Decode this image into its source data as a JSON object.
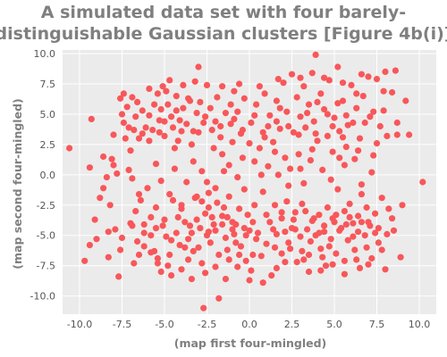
{
  "chart_data": {
    "type": "scatter",
    "title": "A simulated data set with four barely-distinguishable Gaussian clusters [Figure 4b(i)]",
    "title_lines": [
      "A simulated data set with four barely-",
      "distinguishable Gaussian clusters [Figure 4b(i)]"
    ],
    "xlabel": "(map first four-mingled)",
    "ylabel": "(map second four-mingled)",
    "xlim": [
      -11,
      11
    ],
    "ylim": [
      -11.5,
      10.3
    ],
    "xticks": [
      -10,
      -7.5,
      -5,
      -2.5,
      0,
      2.5,
      5,
      7.5,
      10
    ],
    "xtick_labels": [
      "-10.0",
      "-7.5",
      "-5.0",
      "-2.5",
      "0.0",
      "2.5",
      "5.0",
      "7.5",
      "10.0"
    ],
    "yticks": [
      -10,
      -7.5,
      -5,
      -2.5,
      0,
      2.5,
      5,
      7.5,
      10
    ],
    "ytick_labels": [
      "-10.0",
      "-7.5",
      "-5.0",
      "-2.5",
      "0.0",
      "2.5",
      "5.0",
      "7.5",
      "10.0"
    ],
    "grid": true,
    "colors": {
      "background": "#ebebeb",
      "grid": "#ffffff",
      "point": "#f8575a"
    },
    "points": [
      [
        -10.6,
        2.2
      ],
      [
        -9.7,
        -7.1
      ],
      [
        -9.4,
        0.6
      ],
      [
        -9.3,
        4.6
      ],
      [
        -9.0,
        -5.3
      ],
      [
        -8.6,
        -1.1
      ],
      [
        -8.3,
        -4.7
      ],
      [
        -8.1,
        1.3
      ],
      [
        -8.0,
        0.8
      ],
      [
        -7.9,
        -4.5
      ],
      [
        -7.7,
        -8.4
      ],
      [
        -7.6,
        -6.2
      ],
      [
        -7.4,
        4.3
      ],
      [
        -7.4,
        6.7
      ],
      [
        -7.3,
        3.0
      ],
      [
        -7.2,
        5.6
      ],
      [
        -7.1,
        0.4
      ],
      [
        -6.9,
        6.4
      ],
      [
        -6.9,
        -0.3
      ],
      [
        -6.8,
        3.7
      ],
      [
        -6.7,
        -3.0
      ],
      [
        -6.6,
        -5.5
      ],
      [
        -6.5,
        3.0
      ],
      [
        -6.4,
        -2.1
      ],
      [
        -6.3,
        5.3
      ],
      [
        -6.2,
        -4.1
      ],
      [
        -6.2,
        -4.8
      ],
      [
        -6.0,
        -1.1
      ],
      [
        -5.9,
        4.9
      ],
      [
        -5.8,
        -3.5
      ],
      [
        -5.8,
        -6.4
      ],
      [
        -5.7,
        3.7
      ],
      [
        -5.6,
        -6.3
      ],
      [
        -5.5,
        -4.4
      ],
      [
        -5.5,
        0.9
      ],
      [
        -5.4,
        6.7
      ],
      [
        -5.4,
        -7.3
      ],
      [
        -5.3,
        3.5
      ],
      [
        -5.2,
        5.4
      ],
      [
        -5.1,
        7.3
      ],
      [
        -5.0,
        -3.7
      ],
      [
        -5.0,
        4.4
      ],
      [
        -4.9,
        -5.1
      ],
      [
        -4.8,
        -7.5
      ],
      [
        -4.8,
        5.8
      ],
      [
        -4.7,
        -6.6
      ],
      [
        -4.6,
        4.8
      ],
      [
        -4.6,
        -8.3
      ],
      [
        -4.5,
        3.9
      ],
      [
        -4.5,
        -2.1
      ],
      [
        -4.4,
        0.5
      ],
      [
        -4.3,
        -4.8
      ],
      [
        -4.3,
        6.5
      ],
      [
        -4.2,
        2.8
      ],
      [
        -4.1,
        -5.8
      ],
      [
        -4.0,
        3.6
      ],
      [
        -4.0,
        -2.8
      ],
      [
        -3.9,
        5.5
      ],
      [
        -3.8,
        -6.0
      ],
      [
        -3.8,
        -3.9
      ],
      [
        -3.7,
        4.2
      ],
      [
        -3.7,
        -0.6
      ],
      [
        -3.6,
        -7.0
      ],
      [
        -3.5,
        -4.2
      ],
      [
        -3.5,
        6.1
      ],
      [
        -3.4,
        -4.8
      ],
      [
        -3.3,
        1.1
      ],
      [
        -3.3,
        3.6
      ],
      [
        -3.2,
        -1.9
      ],
      [
        -3.1,
        -3.7
      ],
      [
        -3.1,
        5.1
      ],
      [
        -3.0,
        -6.0
      ],
      [
        -3.0,
        8.9
      ],
      [
        -2.9,
        -4.4
      ],
      [
        -2.8,
        -7.3
      ],
      [
        -2.8,
        0.3
      ],
      [
        -2.7,
        -11.0
      ],
      [
        -2.7,
        4.3
      ],
      [
        -2.6,
        -3.2
      ],
      [
        -2.5,
        -5.0
      ],
      [
        -2.5,
        7.4
      ],
      [
        -2.4,
        -1.5
      ],
      [
        -2.4,
        -4.7
      ],
      [
        -2.3,
        5.5
      ],
      [
        -2.2,
        -3.5
      ],
      [
        -2.2,
        3.7
      ],
      [
        -2.1,
        2.2
      ],
      [
        -2.0,
        -4.6
      ],
      [
        -2.0,
        -1.1
      ],
      [
        -1.9,
        6.4
      ],
      [
        -1.8,
        -10.2
      ],
      [
        -1.8,
        -6.6
      ],
      [
        -1.7,
        4.0
      ],
      [
        -1.6,
        -4.1
      ],
      [
        -1.6,
        1.7
      ],
      [
        -1.5,
        -2.7
      ],
      [
        -1.4,
        5.1
      ],
      [
        -1.4,
        -5.2
      ],
      [
        -1.3,
        -3.5
      ],
      [
        -1.2,
        0.8
      ],
      [
        -1.2,
        -7.0
      ],
      [
        -1.1,
        4.2
      ],
      [
        -1.0,
        -3.9
      ],
      [
        -1.0,
        2.7
      ],
      [
        -0.9,
        -4.9
      ],
      [
        -0.9,
        6.9
      ],
      [
        -0.8,
        -5.6
      ],
      [
        -0.7,
        -0.2
      ],
      [
        -0.7,
        5.2
      ],
      [
        -0.6,
        -2.8
      ],
      [
        -0.5,
        3.4
      ],
      [
        -0.5,
        -5.9
      ],
      [
        -0.4,
        1.4
      ],
      [
        -0.3,
        -4.4
      ],
      [
        -0.3,
        6.3
      ],
      [
        -0.2,
        -7.1
      ],
      [
        -0.1,
        -3.3
      ],
      [
        0.0,
        2.6
      ],
      [
        0.0,
        -8.7
      ],
      [
        0.1,
        4.3
      ],
      [
        0.2,
        -6.6
      ],
      [
        0.3,
        1.1
      ],
      [
        0.3,
        -2.5
      ],
      [
        0.4,
        5.8
      ],
      [
        0.5,
        -4.8
      ],
      [
        0.6,
        2.2
      ],
      [
        0.7,
        -6.7
      ],
      [
        0.8,
        3.5
      ],
      [
        0.8,
        -1.4
      ],
      [
        0.9,
        6.7
      ],
      [
        1.0,
        -5.7
      ],
      [
        1.1,
        0.7
      ],
      [
        1.2,
        4.9
      ],
      [
        1.2,
        -3.9
      ],
      [
        1.3,
        -8.3
      ],
      [
        1.4,
        2.7
      ],
      [
        1.5,
        -2.5
      ],
      [
        1.6,
        6.1
      ],
      [
        1.6,
        -4.9
      ],
      [
        1.7,
        0.0
      ],
      [
        1.8,
        3.8
      ],
      [
        1.9,
        -6.5
      ],
      [
        1.9,
        -3.1
      ],
      [
        2.0,
        7.6
      ],
      [
        2.1,
        1.4
      ],
      [
        2.2,
        -2.2
      ],
      [
        2.2,
        5.2
      ],
      [
        2.3,
        -5.6
      ],
      [
        2.4,
        0.5
      ],
      [
        2.5,
        -4.4
      ],
      [
        2.5,
        8.3
      ],
      [
        2.6,
        3.5
      ],
      [
        2.7,
        -3.1
      ],
      [
        2.8,
        6.4
      ],
      [
        2.8,
        -7.2
      ],
      [
        2.9,
        1.7
      ],
      [
        3.0,
        -5.1
      ],
      [
        3.0,
        4.8
      ],
      [
        3.1,
        -2.4
      ],
      [
        3.2,
        7.3
      ],
      [
        3.2,
        -0.7
      ],
      [
        3.3,
        3.9
      ],
      [
        3.4,
        -4.5
      ],
      [
        3.5,
        5.8
      ],
      [
        3.5,
        -6.6
      ],
      [
        3.6,
        1.2
      ],
      [
        3.7,
        -3.8
      ],
      [
        3.7,
        8.4
      ],
      [
        3.8,
        4.4
      ],
      [
        3.9,
        -5.0
      ],
      [
        3.9,
        9.9
      ],
      [
        4.0,
        2.8
      ],
      [
        4.1,
        -3.3
      ],
      [
        4.2,
        6.7
      ],
      [
        4.2,
        -6.1
      ],
      [
        4.3,
        0.4
      ],
      [
        4.4,
        -4.2
      ],
      [
        4.4,
        5.4
      ],
      [
        4.5,
        -7.5
      ],
      [
        4.6,
        3.2
      ],
      [
        4.6,
        -2.7
      ],
      [
        4.7,
        7.8
      ],
      [
        4.8,
        -5.3
      ],
      [
        4.9,
        1.9
      ],
      [
        4.9,
        -3.6
      ],
      [
        5.0,
        4.7
      ],
      [
        5.1,
        -6.5
      ],
      [
        5.2,
        8.9
      ],
      [
        5.2,
        -1.2
      ],
      [
        5.3,
        3.6
      ],
      [
        5.4,
        -4.4
      ],
      [
        5.5,
        6.1
      ],
      [
        5.6,
        -7.1
      ],
      [
        5.6,
        -3.0
      ],
      [
        5.7,
        2.3
      ],
      [
        5.8,
        -5.4
      ],
      [
        5.8,
        4.1
      ],
      [
        5.9,
        -2.4
      ],
      [
        6.0,
        7.4
      ],
      [
        6.1,
        -4.0
      ],
      [
        6.2,
        1.3
      ],
      [
        6.2,
        -6.2
      ],
      [
        6.3,
        5.5
      ],
      [
        6.4,
        -3.4
      ],
      [
        6.5,
        3.0
      ],
      [
        6.5,
        -7.7
      ],
      [
        6.6,
        -1.6
      ],
      [
        6.7,
        6.5
      ],
      [
        6.8,
        -5.0
      ],
      [
        6.8,
        4.3
      ],
      [
        6.9,
        -2.7
      ],
      [
        7.0,
        8.1
      ],
      [
        7.1,
        -4.2
      ],
      [
        7.2,
        0.2
      ],
      [
        7.2,
        -6.9
      ],
      [
        7.3,
        5.2
      ],
      [
        7.4,
        -3.2
      ],
      [
        7.5,
        2.6
      ],
      [
        7.6,
        -5.6
      ],
      [
        7.7,
        4.0
      ],
      [
        7.8,
        -1.9
      ],
      [
        7.9,
        6.9
      ],
      [
        8.0,
        8.5
      ],
      [
        8.1,
        3.2
      ],
      [
        8.2,
        -2.8
      ],
      [
        8.4,
        -3.6
      ],
      [
        8.6,
        8.6
      ],
      [
        8.7,
        3.3
      ],
      [
        8.9,
        -6.8
      ],
      [
        9.2,
        6.1
      ],
      [
        9.4,
        3.3
      ],
      [
        10.2,
        -0.6
      ],
      [
        -7.0,
        2.0
      ],
      [
        -6.1,
        3.9
      ],
      [
        -5.6,
        5.8
      ],
      [
        -4.9,
        6.9
      ],
      [
        -4.4,
        2.2
      ],
      [
        -3.9,
        7.4
      ],
      [
        -3.4,
        2.5
      ],
      [
        -2.9,
        6.0
      ],
      [
        -2.3,
        -5.6
      ],
      [
        -1.9,
        -2.3
      ],
      [
        -1.3,
        -6.2
      ],
      [
        -0.8,
        -4.1
      ],
      [
        -0.2,
        -5.0
      ],
      [
        0.4,
        -5.3
      ],
      [
        1.0,
        -3.3
      ],
      [
        1.5,
        -6.0
      ],
      [
        2.1,
        -4.7
      ],
      [
        2.6,
        -3.7
      ],
      [
        3.1,
        -6.3
      ],
      [
        3.6,
        -5.5
      ],
      [
        4.1,
        -4.8
      ],
      [
        4.7,
        -5.9
      ],
      [
        5.3,
        -4.6
      ],
      [
        5.9,
        -3.5
      ],
      [
        6.4,
        -4.7
      ],
      [
        7.0,
        -3.9
      ],
      [
        7.6,
        -4.4
      ],
      [
        3.4,
        5.1
      ],
      [
        4.0,
        6.0
      ],
      [
        4.6,
        5.0
      ],
      [
        5.2,
        5.9
      ],
      [
        5.7,
        4.9
      ],
      [
        6.3,
        6.7
      ],
      [
        2.9,
        3.3
      ],
      [
        1.8,
        5.5
      ],
      [
        1.1,
        4.0
      ],
      [
        0.3,
        4.9
      ],
      [
        -0.4,
        3.7
      ],
      [
        -1.1,
        5.8
      ],
      [
        -1.7,
        3.1
      ],
      [
        -2.6,
        4.8
      ],
      [
        -3.6,
        6.3
      ],
      [
        -4.3,
        5.3
      ],
      [
        -5.3,
        4.5
      ],
      [
        -5.9,
        2.8
      ],
      [
        -6.7,
        4.8
      ],
      [
        -7.5,
        5.0
      ],
      [
        -8.2,
        -2.5
      ],
      [
        -7.0,
        -4.0
      ],
      [
        -6.2,
        -5.9
      ],
      [
        -5.1,
        -4.2
      ],
      [
        -4.2,
        -3.5
      ],
      [
        -3.3,
        -6.3
      ],
      [
        -2.4,
        -2.7
      ],
      [
        -1.6,
        -3.4
      ],
      [
        -0.7,
        -7.6
      ],
      [
        0.2,
        -3.9
      ],
      [
        1.4,
        -4.5
      ],
      [
        2.4,
        -6.1
      ],
      [
        3.3,
        -3.0
      ],
      [
        4.3,
        -6.8
      ],
      [
        5.0,
        -3.9
      ],
      [
        6.1,
        -5.1
      ],
      [
        6.9,
        -6.0
      ],
      [
        8.1,
        -4.9
      ],
      [
        0.7,
        0.0
      ],
      [
        -0.3,
        -1.2
      ],
      [
        1.5,
        1.9
      ],
      [
        2.3,
        -0.9
      ],
      [
        3.0,
        0.5
      ],
      [
        -1.5,
        0.3
      ],
      [
        -2.5,
        -0.6
      ],
      [
        -3.1,
        -1.8
      ],
      [
        -4.7,
        -1.6
      ],
      [
        -5.5,
        -2.7
      ],
      [
        -6.5,
        -1.6
      ],
      [
        4.8,
        -0.4
      ],
      [
        5.6,
        0.8
      ],
      [
        6.6,
        -0.8
      ],
      [
        -6.9,
        -4.2
      ],
      [
        -5.8,
        -5.0
      ],
      [
        -4.6,
        -5.4
      ],
      [
        -3.6,
        -5.3
      ],
      [
        -2.1,
        -4.1
      ],
      [
        -1.0,
        -4.5
      ],
      [
        0.0,
        -4.6
      ],
      [
        1.9,
        -3.6
      ],
      [
        2.7,
        -4.5
      ],
      [
        3.8,
        -3.6
      ],
      [
        4.4,
        -4.7
      ],
      [
        5.1,
        -3.3
      ],
      [
        5.7,
        -4.1
      ],
      [
        6.6,
        -3.9
      ],
      [
        7.4,
        -4.8
      ],
      [
        0.9,
        3.1
      ],
      [
        1.6,
        4.4
      ],
      [
        2.3,
        4.0
      ],
      [
        -0.9,
        4.6
      ],
      [
        -2.0,
        4.4
      ],
      [
        -3.0,
        3.5
      ],
      [
        -4.1,
        4.5
      ],
      [
        -5.0,
        3.2
      ],
      [
        -6.3,
        3.4
      ],
      [
        -7.1,
        3.9
      ],
      [
        3.9,
        3.4
      ],
      [
        4.9,
        4.0
      ],
      [
        5.5,
        3.1
      ],
      [
        6.1,
        4.3
      ],
      [
        7.1,
        4.8
      ],
      [
        7.9,
        5.3
      ],
      [
        -1.2,
        -1.8
      ],
      [
        -2.8,
        -2.2
      ],
      [
        -4.0,
        -2.5
      ],
      [
        -5.2,
        -0.5
      ],
      [
        3.7,
        2.1
      ],
      [
        5.3,
        1.4
      ],
      [
        6.4,
        2.0
      ],
      [
        7.3,
        1.6
      ],
      [
        -8.6,
        1.5
      ],
      [
        -7.8,
        0.1
      ],
      [
        -8.8,
        -1.9
      ],
      [
        -7.5,
        -5.2
      ],
      [
        -6.8,
        -7.3
      ],
      [
        -5.4,
        -6.9
      ],
      [
        -4.0,
        -7.8
      ],
      [
        -2.6,
        -8.1
      ],
      [
        -1.4,
        -8.6
      ],
      [
        0.1,
        -7.9
      ],
      [
        1.6,
        -7.7
      ],
      [
        3.5,
        -8.0
      ],
      [
        4.9,
        -7.4
      ],
      [
        6.3,
        -7.0
      ],
      [
        7.8,
        -6.2
      ],
      [
        8.5,
        -4.6
      ],
      [
        9.0,
        -2.5
      ],
      [
        8.7,
        4.3
      ],
      [
        8.4,
        6.8
      ],
      [
        7.5,
        7.9
      ],
      [
        6.6,
        8.3
      ],
      [
        5.5,
        7.6
      ],
      [
        4.4,
        8.0
      ],
      [
        3.0,
        8.0
      ],
      [
        1.7,
        7.9
      ],
      [
        0.6,
        7.3
      ],
      [
        -0.6,
        7.5
      ],
      [
        -1.6,
        7.3
      ],
      [
        -3.2,
        7.7
      ],
      [
        -4.7,
        7.8
      ],
      [
        -5.9,
        7.1
      ],
      [
        -6.6,
        6.0
      ],
      [
        -7.6,
        6.3
      ],
      [
        -8.0,
        3.3
      ],
      [
        -8.4,
        -0.2
      ],
      [
        -9.1,
        -3.7
      ],
      [
        -9.4,
        -5.8
      ],
      [
        -8.3,
        -6.8
      ],
      [
        -6.5,
        -6.6
      ],
      [
        -5.2,
        -8.0
      ],
      [
        -3.4,
        -8.6
      ],
      [
        -2.0,
        -7.6
      ],
      [
        -0.6,
        -6.6
      ],
      [
        0.8,
        -8.9
      ],
      [
        2.1,
        -7.2
      ],
      [
        3.2,
        -7.0
      ],
      [
        4.2,
        -7.9
      ],
      [
        5.6,
        -8.2
      ],
      [
        7.0,
        -7.4
      ],
      [
        8.0,
        -7.8
      ]
    ]
  }
}
